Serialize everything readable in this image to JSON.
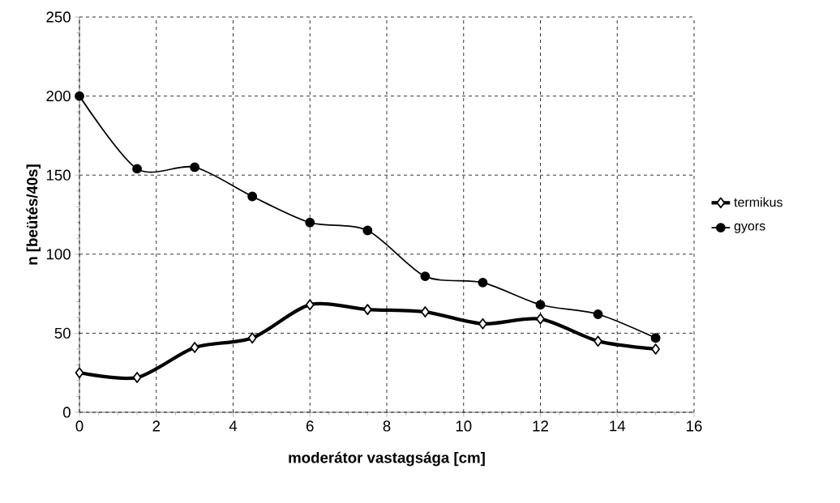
{
  "chart_data": {
    "type": "line",
    "xlabel": "moderátor vastagsága [cm]",
    "ylabel": "n [beütés/40s]",
    "xlim": [
      0,
      16
    ],
    "xticks": [
      0,
      2,
      4,
      6,
      8,
      10,
      12,
      14,
      16
    ],
    "ylim": [
      0,
      250
    ],
    "yticks": [
      0,
      50,
      100,
      150,
      200,
      250
    ],
    "grid": true,
    "legend": "right",
    "series": [
      {
        "name": "termikus",
        "color": "#000000",
        "marker": "diamond",
        "x": [
          0,
          1.5,
          3,
          4.5,
          6,
          7.5,
          9,
          10.5,
          12,
          13.5,
          15
        ],
        "values": [
          25,
          22,
          41,
          47,
          68,
          65,
          63.5,
          56,
          59,
          45,
          40
        ]
      },
      {
        "name": "gyors",
        "color": "#000000",
        "marker": "circle",
        "x": [
          0,
          1.5,
          3,
          4.5,
          6,
          7.5,
          9,
          10.5,
          12,
          13.5,
          15
        ],
        "values": [
          200,
          154,
          155,
          136.5,
          120,
          115,
          86,
          82,
          68,
          62,
          47
        ]
      }
    ]
  }
}
